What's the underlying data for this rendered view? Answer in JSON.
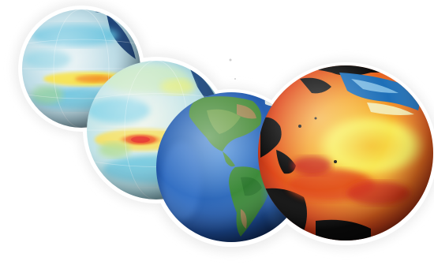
{
  "scene": {
    "description_free": true,
    "globes": [
      {
        "name": "globe-sst-anomaly-1",
        "palette": [
          "#cfe3ea",
          "#5fc0dd",
          "#f5e14a",
          "#0e2f5e"
        ]
      },
      {
        "name": "globe-sst-anomaly-2",
        "palette": [
          "#d8e9d6",
          "#7fd1e6",
          "#f26b2a",
          "#e62b1e"
        ]
      },
      {
        "name": "globe-earth-americas",
        "palette": [
          "#1f4fa3",
          "#3f7dd0",
          "#3d8a3a",
          "#a08a55"
        ]
      },
      {
        "name": "globe-sea-surface-temperature",
        "palette": [
          "#0b0b0b",
          "#1d6fb8",
          "#f7c531",
          "#d22a14"
        ]
      }
    ],
    "colors": {
      "background": "#ffffff",
      "outline_glow": "#f1f1f1",
      "shadow": "#d6d6d6"
    }
  }
}
